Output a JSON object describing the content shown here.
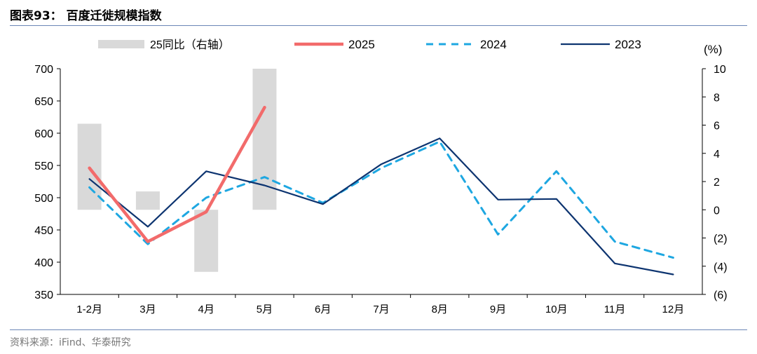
{
  "header": {
    "title": "图表93：  百度迁徙规模指数"
  },
  "footer": {
    "source": "资料来源：iFind、华泰研究"
  },
  "chart_data": {
    "type": "bar+line",
    "categories": [
      "1-2月",
      "3月",
      "4月",
      "5月",
      "6月",
      "7月",
      "8月",
      "9月",
      "10月",
      "11月",
      "12月"
    ],
    "left_axis": {
      "ylim": [
        350,
        700
      ],
      "ticks": [
        "700",
        "650",
        "600",
        "550",
        "500",
        "450",
        "400",
        "350"
      ]
    },
    "right_axis": {
      "unit": "(%)",
      "ylim": [
        -6,
        10
      ],
      "ticks": [
        "10",
        "8",
        "6",
        "4",
        "2",
        "0",
        "(2)",
        "(4)",
        "(6)"
      ]
    },
    "bars": {
      "name": "25同比（右轴）",
      "color": "#d9d9d9",
      "values": [
        6.1,
        1.3,
        -4.4,
        10.0,
        null,
        null,
        null,
        null,
        null,
        null,
        null
      ]
    },
    "series": [
      {
        "name": "2025",
        "color": "#f26b6b",
        "style": "solid-thick",
        "values": [
          546,
          432,
          478,
          640,
          null,
          null,
          null,
          null,
          null,
          null,
          null
        ]
      },
      {
        "name": "2024",
        "color": "#1ea7e1",
        "style": "dashed",
        "values": [
          516,
          428,
          500,
          532,
          492,
          546,
          587,
          443,
          541,
          432,
          407
        ]
      },
      {
        "name": "2023",
        "color": "#0d3470",
        "style": "solid",
        "values": [
          529,
          455,
          541,
          519,
          490,
          552,
          592,
          497,
          498,
          398,
          381
        ]
      }
    ],
    "legend_position": "top"
  }
}
